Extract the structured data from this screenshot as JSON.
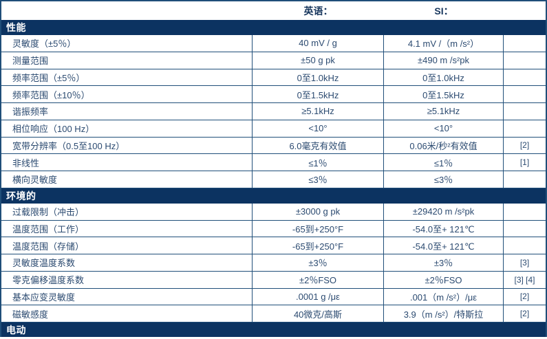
{
  "colors": {
    "border": "#1f4e79",
    "section_bg": "#0c3361",
    "text": "#2b4a70",
    "header_text": "#17365d"
  },
  "table": {
    "column_headers": {
      "english": "英语：",
      "si": "SI："
    },
    "rows": [
      {
        "type": "section",
        "label": "性能"
      },
      {
        "type": "data",
        "label": "灵敏度（±5％）",
        "en": "40 mV / g",
        "si": "4.1 mV /（m /s²）",
        "note": ""
      },
      {
        "type": "data",
        "label": "测量范围",
        "en": "±50 g pk",
        "si": "±490 m /s²pk",
        "note": ""
      },
      {
        "type": "data",
        "label": "频率范围（±5％）",
        "en": "0至1.0kHz",
        "si": "0至1.0kHz",
        "note": ""
      },
      {
        "type": "data",
        "label": "频率范围（±10％）",
        "en": "0至1.5kHz",
        "si": "0至1.5kHz",
        "note": ""
      },
      {
        "type": "data",
        "label": "谐振频率",
        "en": "≥5.1kHz",
        "si": "≥5.1kHz",
        "note": ""
      },
      {
        "type": "data",
        "label": "相位响应（100 Hz）",
        "en": "<10°",
        "si": "<10°",
        "note": ""
      },
      {
        "type": "data",
        "label": "宽带分辨率（0.5至100 Hz）",
        "en": "6.0毫克有效值",
        "si": "0.06米/秒²有效值",
        "note": "[2]"
      },
      {
        "type": "data",
        "label": "非线性",
        "en": "≤1％",
        "si": "≤1％",
        "note": "[1]"
      },
      {
        "type": "data",
        "label": "横向灵敏度",
        "en": "≤3％",
        "si": "≤3％",
        "note": ""
      },
      {
        "type": "section",
        "label": "环境的"
      },
      {
        "type": "data",
        "label": "过载限制（冲击）",
        "en": "±3000 g pk",
        "si": "±29420 m /s²pk",
        "note": ""
      },
      {
        "type": "data",
        "label": "温度范围（工作）",
        "en": "-65到+250°F",
        "si": "-54.0至+ 121℃",
        "note": ""
      },
      {
        "type": "data",
        "label": "温度范围（存储）",
        "en": "-65到+250°F",
        "si": "-54.0至+ 121℃",
        "note": ""
      },
      {
        "type": "data",
        "label": "灵敏度温度系数",
        "en": "±3％",
        "si": "±3％",
        "note": "[3]"
      },
      {
        "type": "data",
        "label": "零克偏移温度系数",
        "en": "±2％FSO",
        "si": "±2％FSO",
        "note": "[3] [4]"
      },
      {
        "type": "data",
        "label": "基本应变灵敏度",
        "en": ".0001 g /με",
        "si": ".001（m /s²）/με",
        "note": "[2]"
      },
      {
        "type": "data",
        "label": "磁敏感度",
        "en": "40微克/高斯",
        "si": "3.9（m /s²）/特斯拉",
        "note": "[2]"
      },
      {
        "type": "section",
        "label": "电动"
      }
    ]
  }
}
